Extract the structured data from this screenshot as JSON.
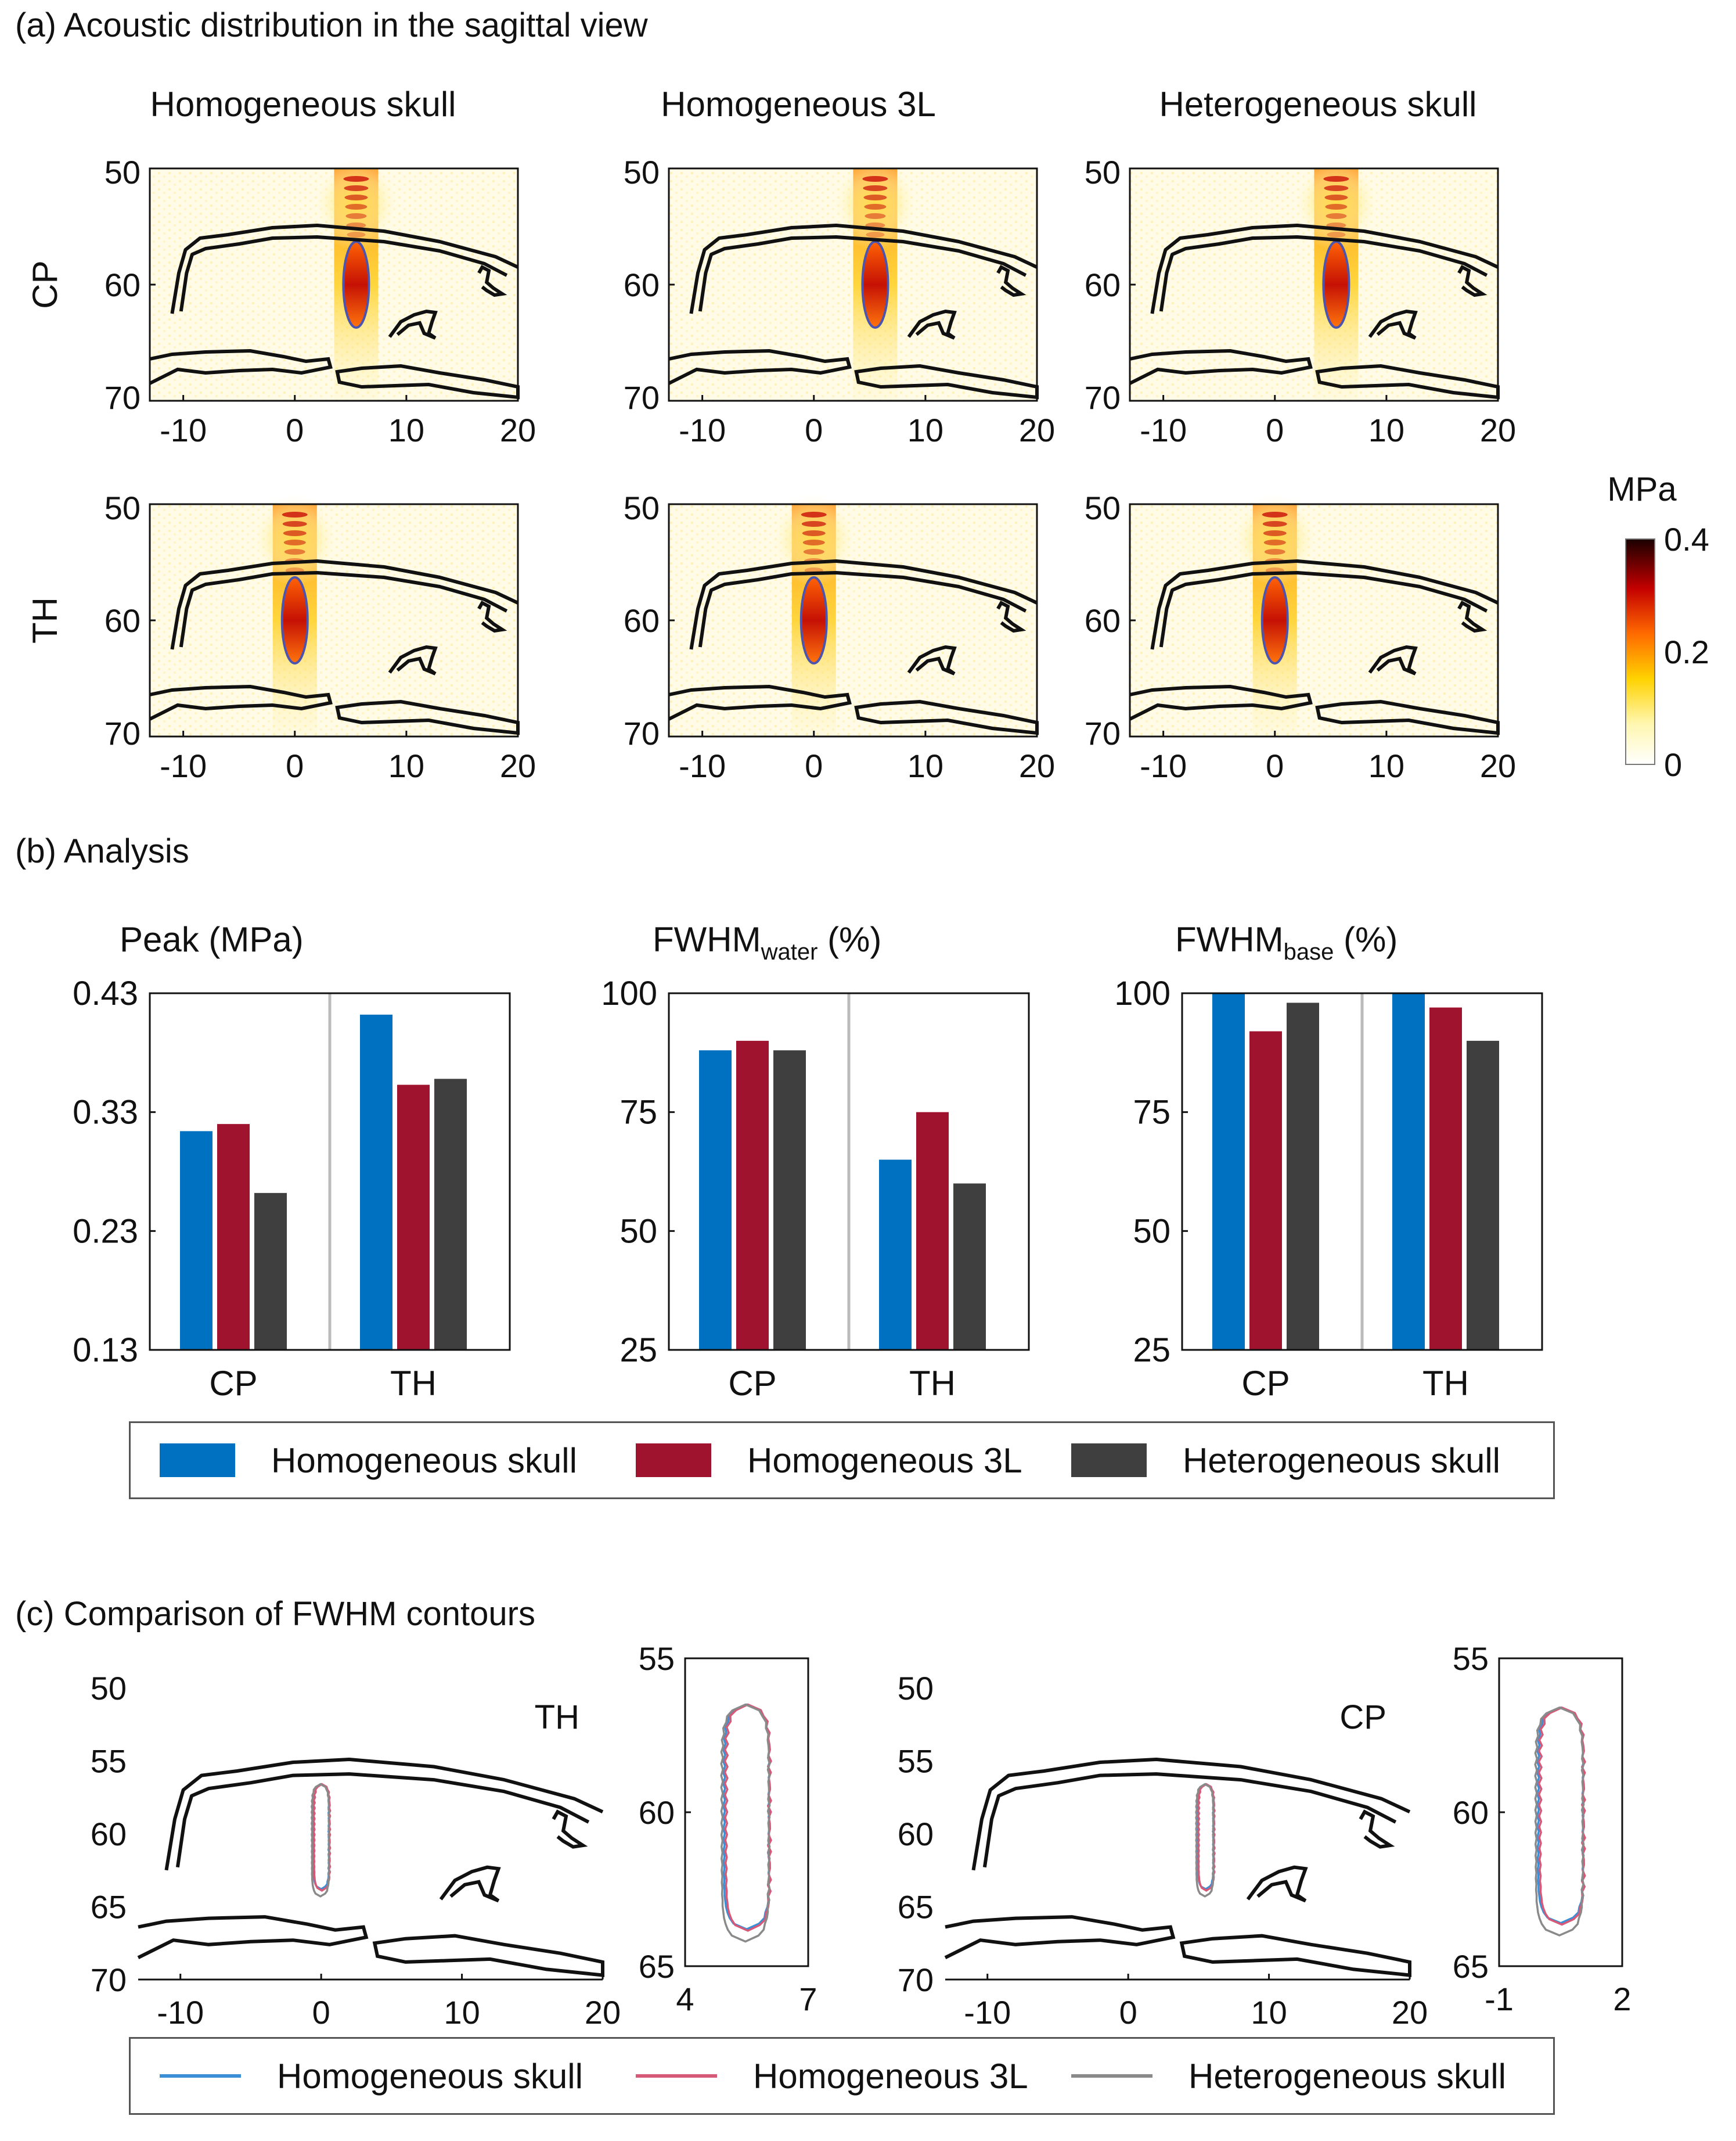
{
  "figure": {
    "panel_a_title": "(a) Acoustic distribution in the sagittal view",
    "panel_b_title": "(b) Analysis",
    "panel_c_title": "(c) Comparison of FWHM contours"
  },
  "colors": {
    "homogeneous_skull": "#0070c0",
    "homogeneous_3l": "#a0132f",
    "heterogeneous_skull": "#3f3f3f",
    "contour_homogeneous_skull": "#3b8fd6",
    "contour_homogeneous_3l": "#d65a78",
    "contour_heterogeneous_skull": "#8a8a8a",
    "skull_outline": "#111111",
    "divider": "#bbbbbb"
  },
  "chart_data": [
    {
      "id": "acoustic_maps",
      "type": "heatmap",
      "column_titles": [
        "Homogeneous skull",
        "Homogeneous 3L",
        "Heterogeneous skull"
      ],
      "row_labels": [
        "CP",
        "TH"
      ],
      "x_ticks": [
        "-10",
        "0",
        "10",
        "20"
      ],
      "y_ticks": [
        "50",
        "60",
        "70"
      ],
      "xlim": [
        -13,
        20
      ],
      "ylim": [
        50,
        70
      ],
      "focus_x": {
        "CP": 5.5,
        "TH": 0
      },
      "focus_y": 60,
      "colorbar": {
        "label": "MPa",
        "ticks": [
          "0",
          "0.2",
          "0.4"
        ],
        "range": [
          0,
          0.4
        ]
      }
    },
    {
      "id": "peak",
      "type": "bar",
      "title": "Peak (MPa)",
      "categories": [
        "CP",
        "TH"
      ],
      "series": [
        {
          "name": "Homogeneous skull",
          "values": [
            0.314,
            0.412
          ]
        },
        {
          "name": "Homogeneous 3L",
          "values": [
            0.32,
            0.353
          ]
        },
        {
          "name": "Heterogeneous skull",
          "values": [
            0.262,
            0.358
          ]
        }
      ],
      "ylim": [
        0.13,
        0.43
      ],
      "y_ticks": [
        "0.13",
        "0.23",
        "0.33",
        "0.43"
      ]
    },
    {
      "id": "fwhm_water",
      "type": "bar",
      "title_main": "FWHM",
      "title_sub": "water",
      "title_unit": " (%)",
      "categories": [
        "CP",
        "TH"
      ],
      "series": [
        {
          "name": "Homogeneous skull",
          "values": [
            88,
            65
          ]
        },
        {
          "name": "Homogeneous 3L",
          "values": [
            90,
            75
          ]
        },
        {
          "name": "Heterogeneous skull",
          "values": [
            88,
            60
          ]
        }
      ],
      "ylim": [
        25,
        100
      ],
      "y_ticks": [
        "25",
        "50",
        "75",
        "100"
      ]
    },
    {
      "id": "fwhm_base",
      "type": "bar",
      "title_main": "FWHM",
      "title_sub": "base",
      "title_unit": " (%)",
      "categories": [
        "CP",
        "TH"
      ],
      "series": [
        {
          "name": "Homogeneous skull",
          "values": [
            100,
            100
          ]
        },
        {
          "name": "Homogeneous 3L",
          "values": [
            92,
            97
          ]
        },
        {
          "name": "Heterogeneous skull",
          "values": [
            98,
            90
          ]
        }
      ],
      "ylim": [
        25,
        100
      ],
      "y_ticks": [
        "25",
        "50",
        "75",
        "100"
      ]
    },
    {
      "id": "contours_th",
      "type": "line",
      "label": "TH",
      "focus_x": 0,
      "x_ticks": [
        "-10",
        "0",
        "10",
        "20"
      ],
      "y_ticks": [
        "50",
        "55",
        "60",
        "65",
        "70"
      ],
      "xlim": [
        -13,
        20
      ],
      "ylim": [
        50,
        70
      ]
    },
    {
      "id": "contours_th_zoom",
      "type": "line",
      "x_ticks": [
        "4",
        "7"
      ],
      "y_ticks": [
        "55",
        "60",
        "65"
      ],
      "xlim": [
        4,
        7
      ],
      "ylim": [
        55,
        65
      ],
      "center_x": 5.5,
      "y_range": [
        56.5,
        63.8
      ]
    },
    {
      "id": "contours_cp",
      "type": "line",
      "label": "CP",
      "focus_x": 5.5,
      "x_ticks": [
        "-10",
        "0",
        "10",
        "20"
      ],
      "y_ticks": [
        "50",
        "55",
        "60",
        "65",
        "70"
      ],
      "xlim": [
        -13,
        20
      ],
      "ylim": [
        50,
        70
      ]
    },
    {
      "id": "contours_cp_zoom",
      "type": "line",
      "x_ticks": [
        "-1",
        "2"
      ],
      "y_ticks": [
        "55",
        "60",
        "65"
      ],
      "xlim": [
        -1,
        2
      ],
      "ylim": [
        55,
        65
      ],
      "center_x": 0.5,
      "y_range": [
        56.6,
        63.6
      ]
    }
  ],
  "legend_bars": [
    "Homogeneous skull",
    "Homogeneous 3L",
    "Heterogeneous skull"
  ],
  "legend_lines": [
    "Homogeneous skull",
    "Homogeneous 3L",
    "Heterogeneous skull"
  ]
}
